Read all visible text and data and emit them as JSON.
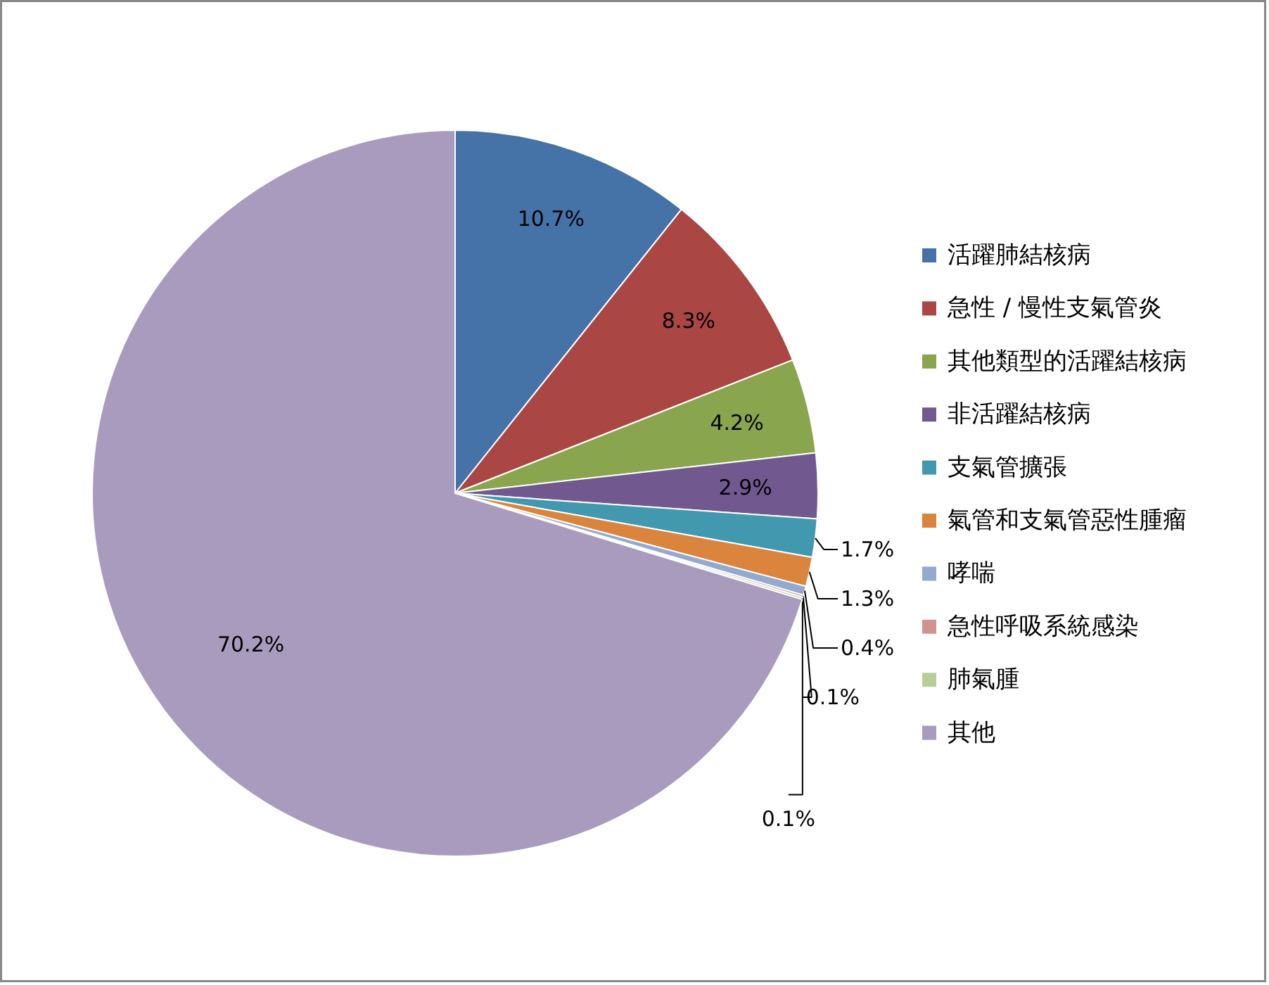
{
  "chart_data": {
    "type": "pie",
    "categories": [
      "活躍肺結核病",
      "急性 / 慢性支氣管炎",
      "其他類型的活躍結核病",
      "非活躍結核病",
      "支氣管擴張",
      "氣管和支氣管惡性腫瘤",
      "哮喘",
      "急性呼吸系統感染",
      "肺氣腫",
      "其他"
    ],
    "values": [
      10.7,
      8.3,
      4.2,
      2.9,
      1.7,
      1.3,
      0.4,
      0.1,
      0.1,
      70.2
    ],
    "colors": [
      "#4572a7",
      "#aa4643",
      "#89a54e",
      "#71588f",
      "#4198af",
      "#db843d",
      "#93a9cf",
      "#d19392",
      "#b9cd96",
      "#a99bbd"
    ],
    "value_labels": [
      "10.7%",
      "8.3%",
      "4.2%",
      "2.9%",
      "1.7%",
      "1.3%",
      "0.4%",
      "0.1%",
      "0.1%",
      "70.2%"
    ],
    "legend": "right"
  }
}
